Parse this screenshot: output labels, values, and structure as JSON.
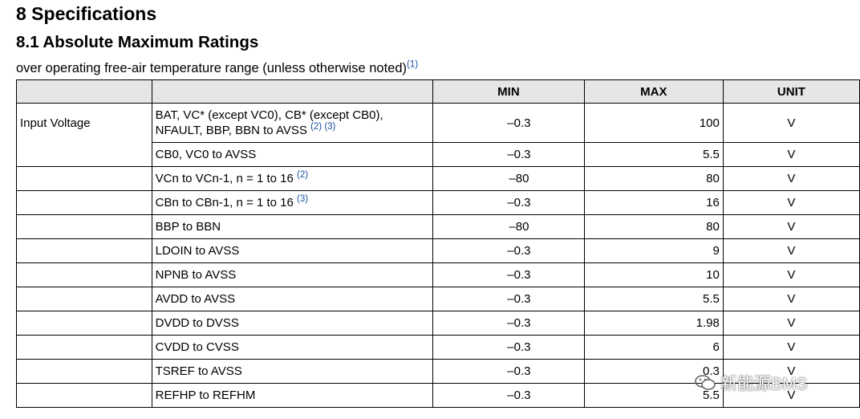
{
  "heading": "8 Specifications",
  "subheading": "8.1 Absolute Maximum Ratings",
  "intro": {
    "text": "over operating free-air temperature range (unless otherwise noted)",
    "footnote": "(1)"
  },
  "table": {
    "headers": {
      "param": "",
      "cond": "",
      "min": "MIN",
      "max": "MAX",
      "unit": "UNIT"
    },
    "group_label": "Input Voltage",
    "rows": [
      {
        "cond_line1": "BAT, VC* (except VC0), CB* (except CB0),",
        "cond_line2": "NFAULT, BBP, BBN to AVSS",
        "fn": "(2) (3)",
        "min": "–0.3",
        "max": "100",
        "unit": "V"
      },
      {
        "cond": "CB0, VC0 to AVSS",
        "fn": "",
        "min": "–0.3",
        "max": "5.5",
        "unit": "V"
      },
      {
        "cond": "VCn to VCn-1, n = 1 to 16",
        "fn": "(2)",
        "min": "–80",
        "max": "80",
        "unit": "V"
      },
      {
        "cond": "CBn to CBn-1, n = 1 to 16",
        "fn": "(3)",
        "min": "–0.3",
        "max": "16",
        "unit": "V"
      },
      {
        "cond": "BBP to BBN",
        "fn": "",
        "min": "–80",
        "max": "80",
        "unit": "V"
      },
      {
        "cond": "LDOIN to AVSS",
        "fn": "",
        "min": "–0.3",
        "max": "9",
        "unit": "V"
      },
      {
        "cond": "NPNB to AVSS",
        "fn": "",
        "min": "–0.3",
        "max": "10",
        "unit": "V"
      },
      {
        "cond": "AVDD to AVSS",
        "fn": "",
        "min": "–0.3",
        "max": "5.5",
        "unit": "V"
      },
      {
        "cond": "DVDD to DVSS",
        "fn": "",
        "min": "–0.3",
        "max": "1.98",
        "unit": "V"
      },
      {
        "cond": "CVDD to CVSS",
        "fn": "",
        "min": "–0.3",
        "max": "6",
        "unit": "V"
      },
      {
        "cond": "TSREF to AVSS",
        "fn": "",
        "min": "–0.3",
        "max": "0.3",
        "unit": "V"
      },
      {
        "cond": "REFHP to REFHM",
        "fn": "",
        "min": "–0.3",
        "max": "5.5",
        "unit": "V"
      }
    ]
  },
  "watermark": {
    "text": "新能源BMS",
    "icon": "wechat-icon"
  }
}
